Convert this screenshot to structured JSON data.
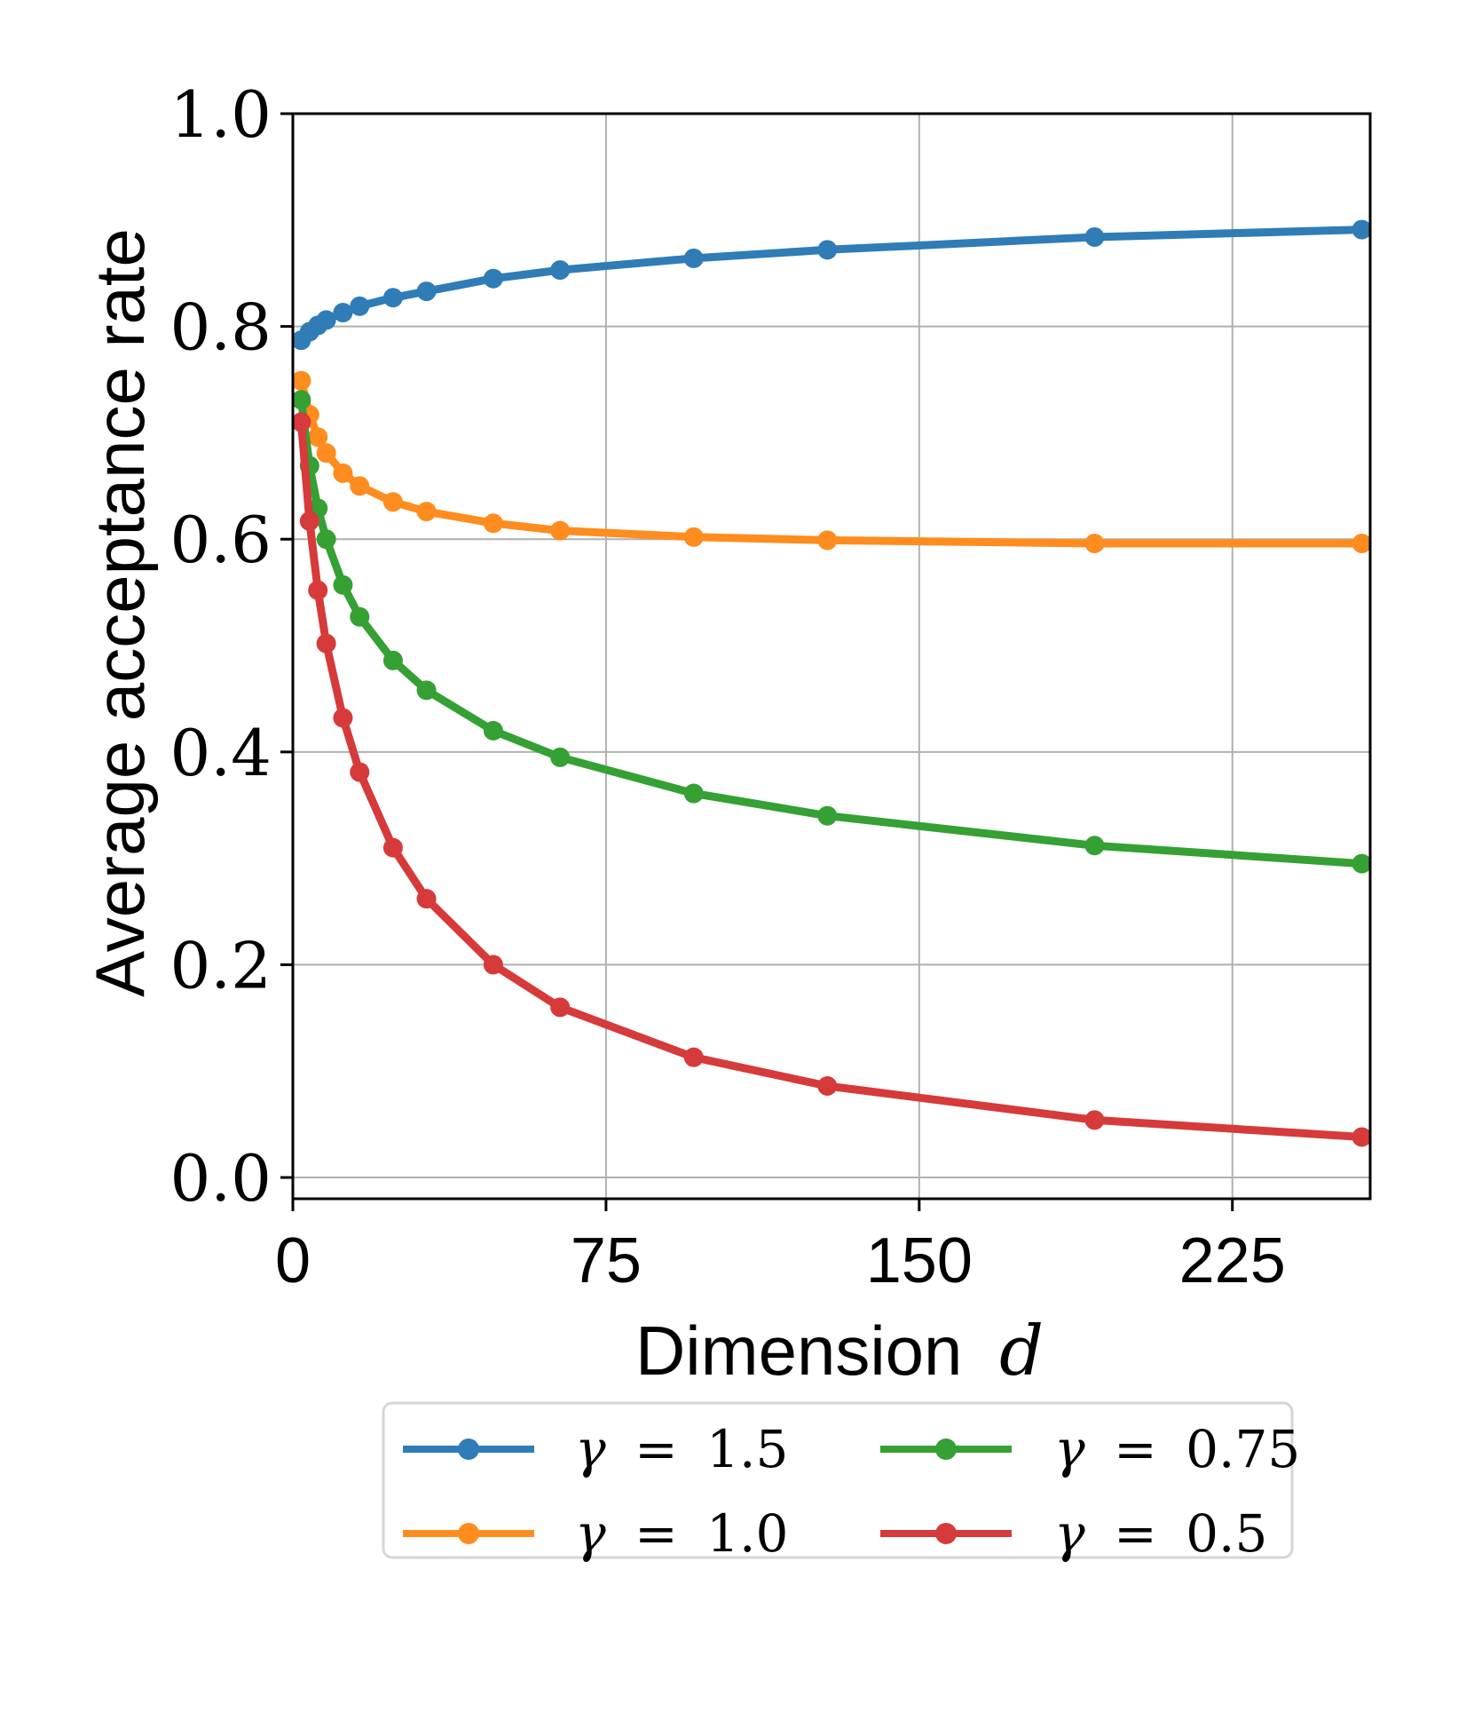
{
  "chart_data": {
    "type": "line",
    "title": "",
    "xlabel": "Dimension",
    "xlabel_var": "d",
    "ylabel": "Average acceptance rate",
    "xlim": [
      0,
      258
    ],
    "ylim": [
      -0.02,
      1.0
    ],
    "xticks": [
      0,
      75,
      150,
      225
    ],
    "xtick_labels": [
      "0",
      "75",
      "150",
      "225"
    ],
    "yticks": [
      0.0,
      0.2,
      0.4,
      0.6,
      0.8,
      1.0
    ],
    "ytick_labels": [
      "0.0",
      "0.2",
      "0.4",
      "0.6",
      "0.8",
      "1.0"
    ],
    "grid": true,
    "legend_position": "below",
    "x": [
      2,
      4,
      6,
      8,
      12,
      16,
      24,
      32,
      48,
      64,
      96,
      128,
      192,
      256
    ],
    "series": [
      {
        "name": "γ = 1.5",
        "symbol": "γ",
        "eq": "=",
        "num": "1.5",
        "color": "#2f7cb6",
        "values": [
          0.787,
          0.795,
          0.801,
          0.806,
          0.813,
          0.819,
          0.827,
          0.833,
          0.845,
          0.853,
          0.864,
          0.872,
          0.884,
          0.891
        ]
      },
      {
        "name": "γ = 1.0",
        "symbol": "γ",
        "eq": "=",
        "num": "1.0",
        "color": "#ff8c1e",
        "values": [
          0.749,
          0.717,
          0.696,
          0.681,
          0.662,
          0.65,
          0.635,
          0.626,
          0.615,
          0.608,
          0.602,
          0.599,
          0.596,
          0.596
        ]
      },
      {
        "name": "γ = 0.75",
        "symbol": "γ",
        "eq": "=",
        "num": "0.75",
        "color": "#35a033",
        "values": [
          0.731,
          0.669,
          0.629,
          0.6,
          0.557,
          0.527,
          0.486,
          0.458,
          0.42,
          0.395,
          0.361,
          0.34,
          0.312,
          0.295
        ]
      },
      {
        "name": "γ = 0.5",
        "symbol": "γ",
        "eq": "=",
        "num": "0.5",
        "color": "#d63a3a",
        "values": [
          0.71,
          0.617,
          0.552,
          0.502,
          0.432,
          0.381,
          0.31,
          0.262,
          0.2,
          0.16,
          0.113,
          0.086,
          0.054,
          0.038
        ]
      }
    ]
  }
}
